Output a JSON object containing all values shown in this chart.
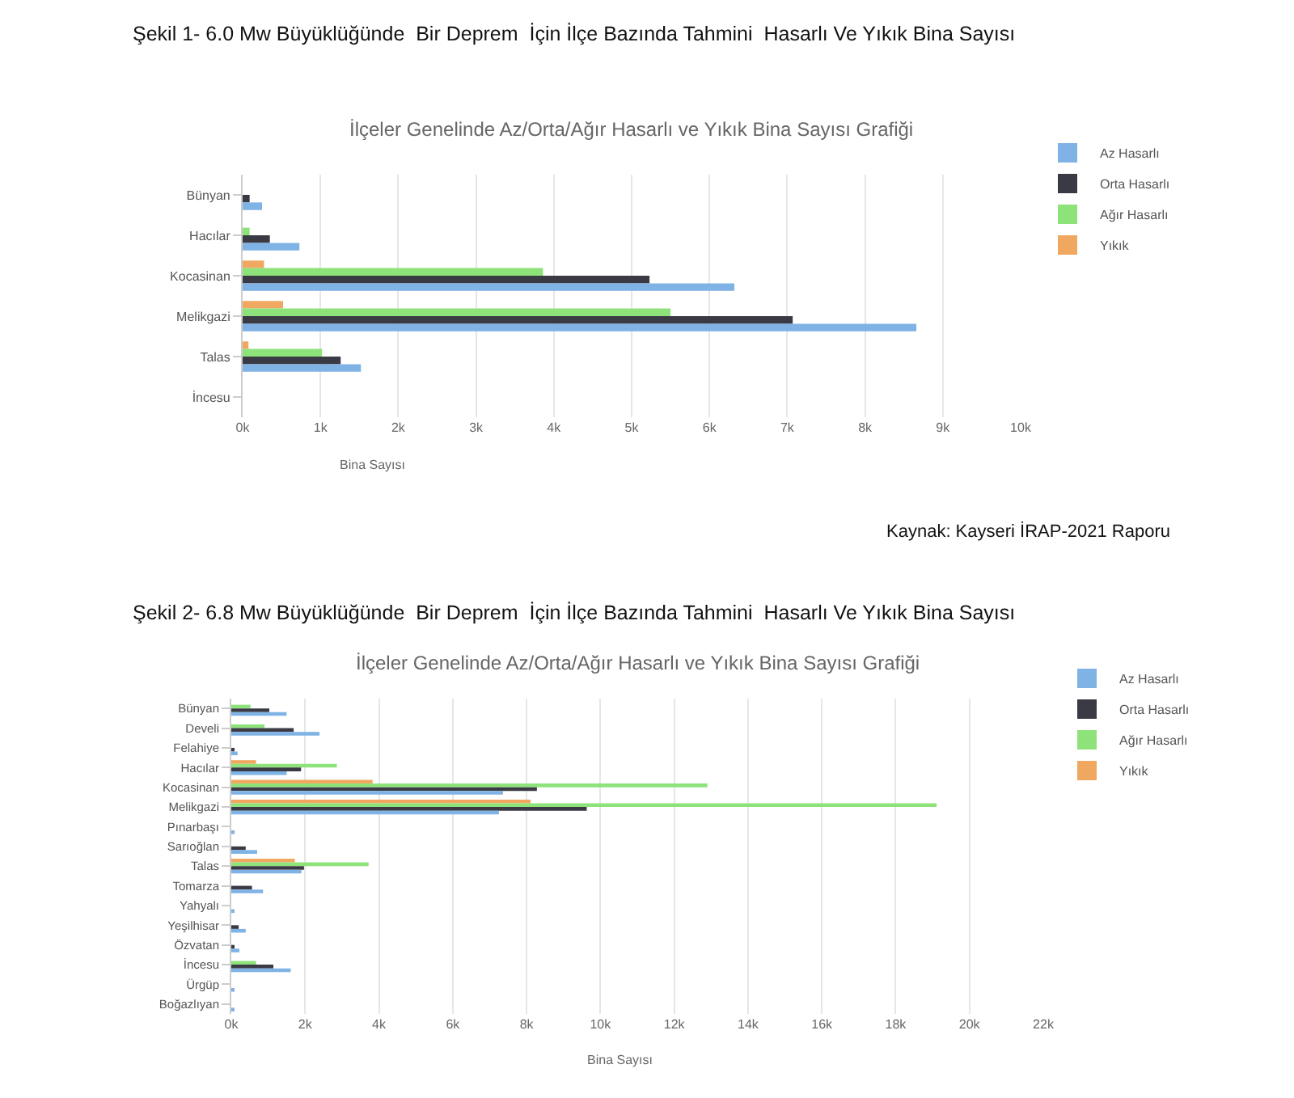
{
  "chart_data": [
    {
      "type": "bar",
      "orientation": "horizontal",
      "subtitle": "Şekil 1- 6.0 Mw Büyüklüğünde  Bir Deprem  İçin İlçe Bazında Tahmini  Hasarlı Ve Yıkık Bina Sayısı",
      "title": "İlçeler Genelinde Az/Orta/Ağır Hasarlı ve Yıkık Bina Sayısı Grafiği",
      "xlabel": "Bina Sayısı",
      "categories": [
        "Bünyan",
        "Hacılar",
        "Kocasinan",
        "Melikgazi",
        "Talas",
        "İncesu"
      ],
      "series": [
        {
          "name": "Az Hasarlı",
          "color": "#7fb2e5",
          "values": [
            250,
            730,
            6320,
            8660,
            1520,
            0
          ]
        },
        {
          "name": "Orta Hasarlı",
          "color": "#3a3a45",
          "values": [
            90,
            350,
            5230,
            7070,
            1260,
            0
          ]
        },
        {
          "name": "Ağır Hasarlı",
          "color": "#8ee27a",
          "values": [
            0,
            90,
            3860,
            5500,
            1020,
            0
          ]
        },
        {
          "name": "Yıkık",
          "color": "#f0a860",
          "values": [
            0,
            0,
            275,
            520,
            75,
            0
          ]
        }
      ],
      "xlim": [
        0,
        10000
      ],
      "xticks": [
        {
          "value": 0,
          "label": "0k"
        },
        {
          "value": 1000,
          "label": "1k"
        },
        {
          "value": 2000,
          "label": "2k"
        },
        {
          "value": 3000,
          "label": "3k"
        },
        {
          "value": 4000,
          "label": "4k"
        },
        {
          "value": 5000,
          "label": "5k"
        },
        {
          "value": 6000,
          "label": "6k"
        },
        {
          "value": 7000,
          "label": "7k"
        },
        {
          "value": 8000,
          "label": "8k"
        },
        {
          "value": 9000,
          "label": "9k"
        },
        {
          "value": 10000,
          "label": "10k"
        }
      ],
      "grid": "x",
      "legend": "top right",
      "annotations": [
        "Kaynak: Kayseri İRAP-2021 Raporu"
      ]
    },
    {
      "type": "bar",
      "orientation": "horizontal",
      "subtitle": "Şekil 2- 6.8 Mw Büyüklüğünde  Bir Deprem  İçin İlçe Bazında Tahmini  Hasarlı Ve Yıkık Bina Sayısı",
      "title": "İlçeler Genelinde Az/Orta/Ağır Hasarlı ve Yıkık Bina Sayısı Grafiği",
      "xlabel": "Bina Sayısı",
      "categories": [
        "Bünyan",
        "Develi",
        "Felahiye",
        "Hacılar",
        "Kocasinan",
        "Melikgazi",
        "Pınarbaşı",
        "Sarıoğlan",
        "Talas",
        "Tomarza",
        "Yahyalı",
        "Yeşilhisar",
        "Özvatan",
        "İncesu",
        "Ürgüp",
        "Boğazlıyan"
      ],
      "series": [
        {
          "name": "Az Hasarlı",
          "color": "#7fb2e5",
          "values": [
            1500,
            2390,
            170,
            1500,
            7360,
            7250,
            50,
            700,
            1900,
            860,
            80,
            390,
            220,
            1610,
            80,
            80
          ]
        },
        {
          "name": "Orta Hasarlı",
          "color": "#3a3a45",
          "values": [
            1030,
            1690,
            80,
            1890,
            8280,
            9630,
            0,
            390,
            1970,
            560,
            0,
            200,
            80,
            1140,
            0,
            0
          ]
        },
        {
          "name": "Ağır Hasarlı",
          "color": "#8ee27a",
          "values": [
            520,
            900,
            0,
            2860,
            12900,
            19110,
            0,
            0,
            3720,
            0,
            0,
            0,
            0,
            670,
            0,
            0
          ]
        },
        {
          "name": "Yıkık",
          "color": "#f0a860",
          "values": [
            0,
            0,
            0,
            670,
            3830,
            8110,
            0,
            0,
            1720,
            0,
            0,
            0,
            0,
            0,
            0,
            0
          ]
        }
      ],
      "xlim": [
        0,
        22000
      ],
      "xticks": [
        {
          "value": 0,
          "label": "0k"
        },
        {
          "value": 2000,
          "label": "2k"
        },
        {
          "value": 4000,
          "label": "4k"
        },
        {
          "value": 6000,
          "label": "6k"
        },
        {
          "value": 8000,
          "label": "8k"
        },
        {
          "value": 10000,
          "label": "10k"
        },
        {
          "value": 12000,
          "label": "12k"
        },
        {
          "value": 14000,
          "label": "14k"
        },
        {
          "value": 16000,
          "label": "16k"
        },
        {
          "value": 18000,
          "label": "18k"
        },
        {
          "value": 20000,
          "label": "20k"
        },
        {
          "value": 22000,
          "label": "22k"
        }
      ],
      "grid": "x",
      "legend": "top right"
    }
  ]
}
